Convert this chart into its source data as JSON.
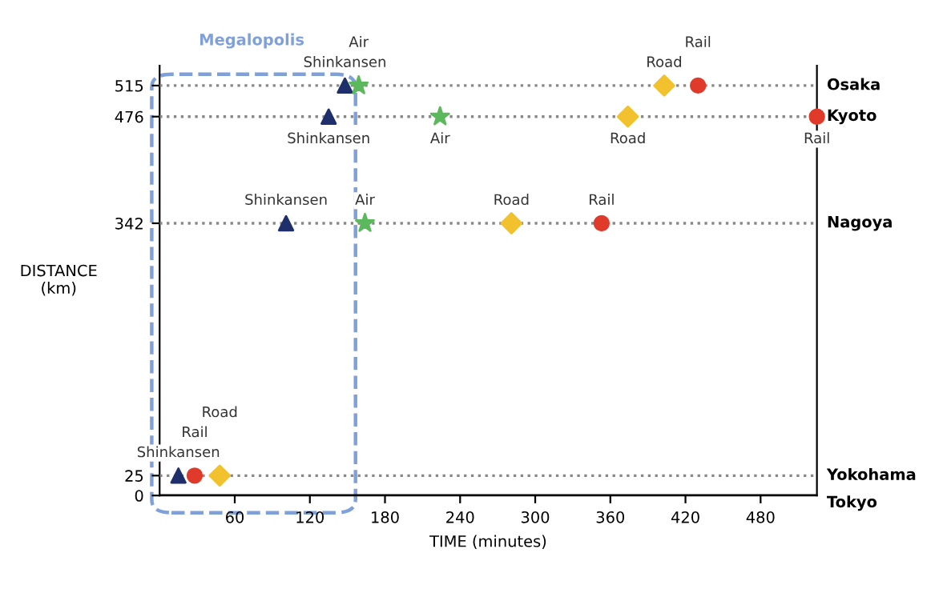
{
  "chart_data": {
    "type": "scatter",
    "xlabel": "TIME (minutes)",
    "ylabel": "DISTANCE\n(km)",
    "xlim": [
      0,
      525
    ],
    "ylim": [
      0,
      540
    ],
    "xticks": [
      60,
      120,
      180,
      240,
      300,
      360,
      420,
      480
    ],
    "yticks": [
      0,
      25,
      342,
      476,
      515
    ],
    "series": [
      {
        "name": "Shinkansen",
        "color": "#1f2f6b",
        "marker": "triangle",
        "x": [
          148,
          135,
          101,
          15
        ],
        "values": [
          515,
          476,
          342,
          25
        ]
      },
      {
        "name": "Air",
        "color": "#5cb85c",
        "marker": "star",
        "x": [
          159,
          224,
          164
        ],
        "values": [
          515,
          476,
          342
        ]
      },
      {
        "name": "Road",
        "color": "#f2c12e",
        "marker": "diamond",
        "x": [
          403,
          374,
          281,
          48
        ],
        "values": [
          515,
          476,
          342,
          25
        ]
      },
      {
        "name": "Rail",
        "color": "#e03a2a",
        "marker": "circle",
        "x": [
          430,
          525,
          353,
          28
        ],
        "values": [
          515,
          476,
          342,
          25
        ]
      }
    ],
    "ref_lines": [
      {
        "axis": "y",
        "value": 515,
        "label": "Osaka",
        "line_style": "dotted",
        "color": "#888888"
      },
      {
        "axis": "y",
        "value": 476,
        "label": "Kyoto",
        "line_style": "dotted",
        "color": "#888888"
      },
      {
        "axis": "y",
        "value": 342,
        "label": "Nagoya",
        "line_style": "dotted",
        "color": "#888888"
      },
      {
        "axis": "y",
        "value": 25,
        "label": "Yokohama",
        "line_style": "dotted",
        "color": "#888888"
      },
      {
        "axis": "y",
        "value": 0,
        "label": "Tokyo",
        "line_style": "solid",
        "color": "#000000"
      }
    ],
    "annotations": [
      "Megalopolis"
    ],
    "grid": false,
    "legend": false
  }
}
